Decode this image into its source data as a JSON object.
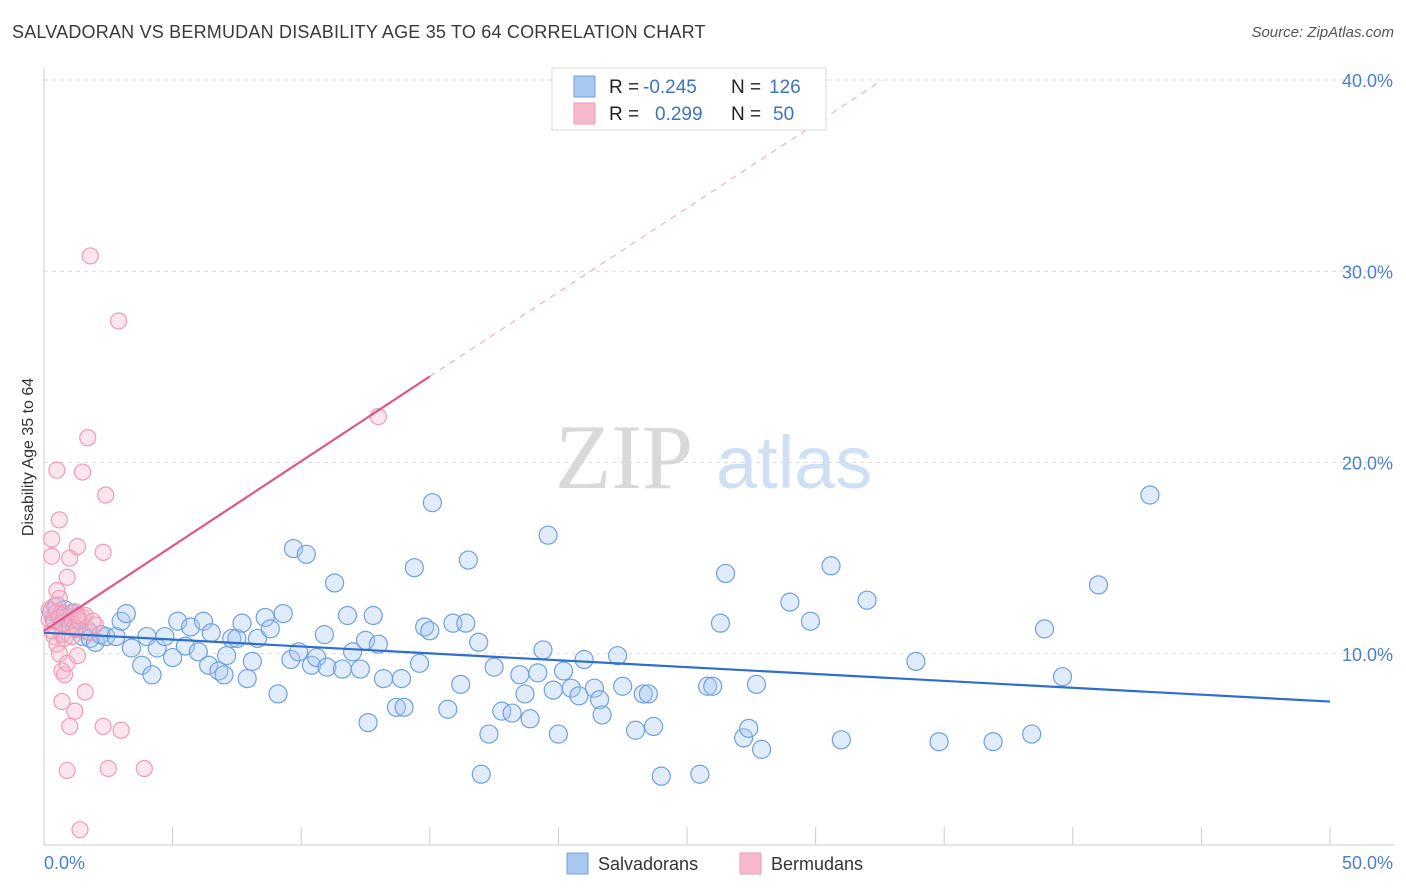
{
  "header": {
    "title": "SALVADORAN VS BERMUDAN DISABILITY AGE 35 TO 64 CORRELATION CHART",
    "source": "Source: ZipAtlas.com"
  },
  "watermark": {
    "zip": "ZIP",
    "atlas": "atlas"
  },
  "legend": {
    "rows": [
      {
        "r_label": "R =",
        "r_value": "-0.245",
        "n_label": "N =",
        "n_value": "126",
        "color": "#a8c8f0"
      },
      {
        "r_label": "R =",
        "r_value": "0.299",
        "n_label": "N =",
        "n_value": "50",
        "color": "#f6b8cb"
      }
    ]
  },
  "bottom_legend": [
    {
      "label": "Salvadorans",
      "color": "#a8c8f0"
    },
    {
      "label": "Bermudans",
      "color": "#f6b8cb"
    }
  ],
  "chart_data": {
    "type": "scatter",
    "ylabel": "Disability Age 35 to 64",
    "xlim": [
      0,
      50
    ],
    "ylim": [
      0,
      40
    ],
    "x_tick_labels": [
      "0.0%",
      "50.0%"
    ],
    "y_ticks": [
      10,
      20,
      30,
      40
    ],
    "y_tick_labels": [
      "10.0%",
      "20.0%",
      "30.0%",
      "40.0%"
    ],
    "grid": "horizontal dashed",
    "legend_placement": "top-center",
    "series": [
      {
        "name": "Salvadorans",
        "color": "#6fa0e0",
        "trend": {
          "x": [
            0,
            50
          ],
          "y": [
            11.1,
            7.5
          ],
          "color": "#2f6fcc"
        },
        "points": [
          [
            0.3,
            12.2
          ],
          [
            0.4,
            11.8
          ],
          [
            0.5,
            12.5
          ],
          [
            0.6,
            12.0
          ],
          [
            0.7,
            11.6
          ],
          [
            0.8,
            12.3
          ],
          [
            0.9,
            11.9
          ],
          [
            1.0,
            11.5
          ],
          [
            1.1,
            12.1
          ],
          [
            1.2,
            11.3
          ],
          [
            1.3,
            11.8
          ],
          [
            1.5,
            10.9
          ],
          [
            1.7,
            11.2
          ],
          [
            1.8,
            10.8
          ],
          [
            2.0,
            10.6
          ],
          [
            2.2,
            11.0
          ],
          [
            2.4,
            10.9
          ],
          [
            2.8,
            10.9
          ],
          [
            3.0,
            11.7
          ],
          [
            3.2,
            12.1
          ],
          [
            3.4,
            10.3
          ],
          [
            3.8,
            9.4
          ],
          [
            4.0,
            10.9
          ],
          [
            4.2,
            8.9
          ],
          [
            4.4,
            10.3
          ],
          [
            4.7,
            10.9
          ],
          [
            5.0,
            9.8
          ],
          [
            5.2,
            11.7
          ],
          [
            5.5,
            10.4
          ],
          [
            5.7,
            11.4
          ],
          [
            6.0,
            10.1
          ],
          [
            6.2,
            11.7
          ],
          [
            6.4,
            9.4
          ],
          [
            6.5,
            11.1
          ],
          [
            6.8,
            9.1
          ],
          [
            7.0,
            8.9
          ],
          [
            7.1,
            9.9
          ],
          [
            7.3,
            10.8
          ],
          [
            7.5,
            10.8
          ],
          [
            7.7,
            11.6
          ],
          [
            7.9,
            8.7
          ],
          [
            8.1,
            9.6
          ],
          [
            8.3,
            10.8
          ],
          [
            8.6,
            11.9
          ],
          [
            8.8,
            11.3
          ],
          [
            9.1,
            7.9
          ],
          [
            9.3,
            12.1
          ],
          [
            9.6,
            9.7
          ],
          [
            9.7,
            15.5
          ],
          [
            9.9,
            10.1
          ],
          [
            10.2,
            15.2
          ],
          [
            10.4,
            9.4
          ],
          [
            10.6,
            9.8
          ],
          [
            10.9,
            11.0
          ],
          [
            11.0,
            9.3
          ],
          [
            11.3,
            13.7
          ],
          [
            11.6,
            9.2
          ],
          [
            11.8,
            12.0
          ],
          [
            12.0,
            10.1
          ],
          [
            12.3,
            9.2
          ],
          [
            12.5,
            10.7
          ],
          [
            12.6,
            6.4
          ],
          [
            12.8,
            12.0
          ],
          [
            13.0,
            10.5
          ],
          [
            13.2,
            8.7
          ],
          [
            13.7,
            7.2
          ],
          [
            13.9,
            8.7
          ],
          [
            14.0,
            7.2
          ],
          [
            14.4,
            14.5
          ],
          [
            14.6,
            9.5
          ],
          [
            14.8,
            11.4
          ],
          [
            15.0,
            11.2
          ],
          [
            15.1,
            17.9
          ],
          [
            15.7,
            7.1
          ],
          [
            15.9,
            11.6
          ],
          [
            16.2,
            8.4
          ],
          [
            16.4,
            11.6
          ],
          [
            16.5,
            14.9
          ],
          [
            16.9,
            10.6
          ],
          [
            17.0,
            3.7
          ],
          [
            17.3,
            5.8
          ],
          [
            17.5,
            9.3
          ],
          [
            17.8,
            7.0
          ],
          [
            18.2,
            6.9
          ],
          [
            18.5,
            8.9
          ],
          [
            18.7,
            7.9
          ],
          [
            18.9,
            6.6
          ],
          [
            19.2,
            9.0
          ],
          [
            19.4,
            10.2
          ],
          [
            19.6,
            16.2
          ],
          [
            19.8,
            8.1
          ],
          [
            20.0,
            5.8
          ],
          [
            20.2,
            9.1
          ],
          [
            20.5,
            8.2
          ],
          [
            20.8,
            7.8
          ],
          [
            21.0,
            9.7
          ],
          [
            21.4,
            8.2
          ],
          [
            21.6,
            7.6
          ],
          [
            21.7,
            6.8
          ],
          [
            22.3,
            9.9
          ],
          [
            22.5,
            8.3
          ],
          [
            23.0,
            6.0
          ],
          [
            23.3,
            7.9
          ],
          [
            23.5,
            7.9
          ],
          [
            23.7,
            6.2
          ],
          [
            24.0,
            3.6
          ],
          [
            25.5,
            3.7
          ],
          [
            25.8,
            8.3
          ],
          [
            26.0,
            8.3
          ],
          [
            26.3,
            11.6
          ],
          [
            26.5,
            14.2
          ],
          [
            27.2,
            5.6
          ],
          [
            27.4,
            6.1
          ],
          [
            27.7,
            8.4
          ],
          [
            27.9,
            5.0
          ],
          [
            29.0,
            12.7
          ],
          [
            29.8,
            11.7
          ],
          [
            30.6,
            14.6
          ],
          [
            31.0,
            5.5
          ],
          [
            32.0,
            12.8
          ],
          [
            33.9,
            9.6
          ],
          [
            34.8,
            5.4
          ],
          [
            36.9,
            5.4
          ],
          [
            38.4,
            5.8
          ],
          [
            38.9,
            11.3
          ],
          [
            39.6,
            8.8
          ],
          [
            41.0,
            13.6
          ],
          [
            43.0,
            18.3
          ]
        ]
      },
      {
        "name": "Bermudans",
        "color": "#f29ab6",
        "trend": {
          "x": [
            0,
            15
          ],
          "y": [
            11.2,
            24.5
          ],
          "color": "#e0558a",
          "dashed_extension": {
            "x": [
              15,
              32.6
            ],
            "y": [
              24.5,
              40
            ]
          }
        },
        "points": [
          [
            0.2,
            11.8
          ],
          [
            0.2,
            12.3
          ],
          [
            0.3,
            11.2
          ],
          [
            0.3,
            15.1
          ],
          [
            0.3,
            16.0
          ],
          [
            0.4,
            11.7
          ],
          [
            0.4,
            10.9
          ],
          [
            0.4,
            12.5
          ],
          [
            0.5,
            19.6
          ],
          [
            0.5,
            12.2
          ],
          [
            0.5,
            10.5
          ],
          [
            0.5,
            13.3
          ],
          [
            0.6,
            11.9
          ],
          [
            0.6,
            10.0
          ],
          [
            0.6,
            17.0
          ],
          [
            0.6,
            12.9
          ],
          [
            0.7,
            9.1
          ],
          [
            0.7,
            11.0
          ],
          [
            0.7,
            7.5
          ],
          [
            0.7,
            11.6
          ],
          [
            0.8,
            8.9
          ],
          [
            0.8,
            12.1
          ],
          [
            0.8,
            10.8
          ],
          [
            0.9,
            9.5
          ],
          [
            0.9,
            14.0
          ],
          [
            0.9,
            3.9
          ],
          [
            1.0,
            6.2
          ],
          [
            1.0,
            11.4
          ],
          [
            1.0,
            15.0
          ],
          [
            1.1,
            11.8
          ],
          [
            1.1,
            10.9
          ],
          [
            1.2,
            7.0
          ],
          [
            1.2,
            12.2
          ],
          [
            1.3,
            11.3
          ],
          [
            1.3,
            15.6
          ],
          [
            1.3,
            9.9
          ],
          [
            1.4,
            11.7
          ],
          [
            1.4,
            0.8
          ],
          [
            1.5,
            19.5
          ],
          [
            1.5,
            11.9
          ],
          [
            1.6,
            8.0
          ],
          [
            1.6,
            12.0
          ],
          [
            1.7,
            21.3
          ],
          [
            1.8,
            30.8
          ],
          [
            1.8,
            11.1
          ],
          [
            1.9,
            11.7
          ],
          [
            2.0,
            11.5
          ],
          [
            2.3,
            6.2
          ],
          [
            2.5,
            4.0
          ],
          [
            3.0,
            6.0
          ]
        ]
      }
    ],
    "extra_points": {
      "Bermudans": [
        [
          2.3,
          15.3
        ],
        [
          2.4,
          18.3
        ],
        [
          2.9,
          27.4
        ],
        [
          3.9,
          4.0
        ],
        [
          13.0,
          22.4
        ],
        [
          1.3,
          12.0
        ]
      ]
    }
  }
}
